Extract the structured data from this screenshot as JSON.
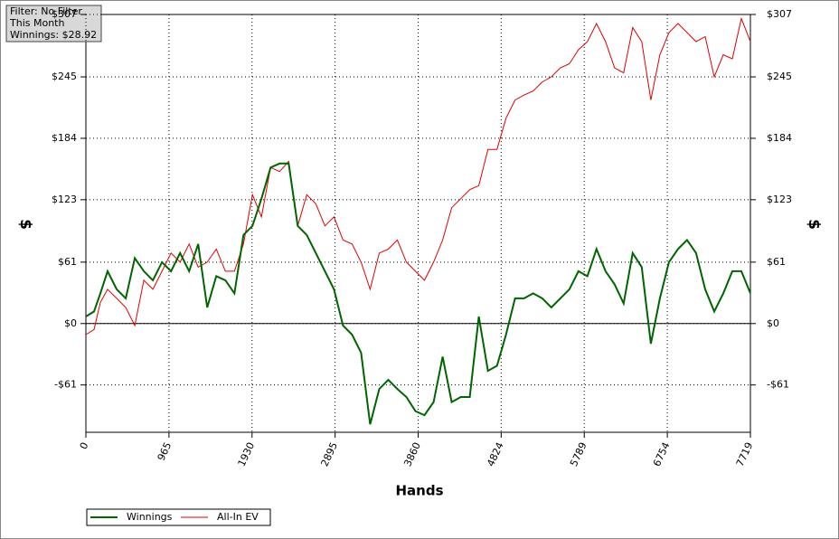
{
  "chart_data": {
    "type": "line",
    "x_label": "Hands",
    "y_label": "$",
    "y2_label": "$",
    "info": [
      "Filter: No Filter",
      "This Month",
      "Winnings: $28.92"
    ],
    "x": [
      0,
      95,
      168,
      252,
      358,
      463,
      568,
      673,
      778,
      884,
      989,
      1094,
      1199,
      1304,
      1409,
      1514,
      1620,
      1725,
      1830,
      1935,
      2040,
      2146,
      2251,
      2356,
      2461,
      2566,
      2671,
      2777,
      2882,
      2987,
      3092,
      3197,
      3302,
      3408,
      3513,
      3618,
      3723,
      3828,
      3933,
      4039,
      4144,
      4249,
      4354,
      4459,
      4564,
      4670,
      4775,
      4880,
      4985,
      5090,
      5195,
      5301,
      5406,
      5511,
      5616,
      5721,
      5826,
      5932,
      6037,
      6142,
      6247,
      6352,
      6457,
      6563,
      6668,
      6773,
      6878,
      6983,
      7088,
      7194,
      7299,
      7404,
      7509,
      7614,
      7719
    ],
    "series": [
      {
        "name": "Winnings",
        "color": "#006400",
        "values": [
          7,
          12,
          30,
          52,
          34,
          25,
          65,
          52,
          43,
          61,
          52,
          70,
          52,
          79,
          16,
          47,
          43,
          30,
          88,
          97,
          124,
          155,
          159,
          159,
          97,
          88,
          70,
          52,
          34,
          -2,
          -11,
          -29,
          -100,
          -65,
          -56,
          -65,
          -73,
          -87,
          -91,
          -78,
          -33,
          -78,
          -73,
          -73,
          7,
          -47,
          -42,
          -11,
          25,
          25,
          30,
          25,
          16,
          25,
          34,
          52,
          47,
          74,
          52,
          39,
          20,
          70,
          56,
          -20,
          25,
          61,
          74,
          83,
          70,
          34,
          12,
          30,
          52,
          52,
          30
        ]
      },
      {
        "name": "All-In EV",
        "color": "#e00000",
        "values": [
          -11,
          -6,
          21,
          34,
          25,
          16,
          -2,
          43,
          34,
          52,
          70,
          61,
          79,
          56,
          61,
          74,
          52,
          52,
          79,
          128,
          106,
          155,
          151,
          161,
          97,
          128,
          119,
          97,
          106,
          83,
          79,
          61,
          34,
          70,
          74,
          83,
          61,
          52,
          43,
          61,
          83,
          115,
          124,
          133,
          137,
          173,
          173,
          204,
          222,
          227,
          231,
          240,
          245,
          254,
          258,
          272,
          280,
          298,
          280,
          254,
          249,
          294,
          280,
          222,
          267,
          289,
          298,
          289,
          280,
          285,
          245,
          267,
          263,
          303,
          280
        ]
      }
    ],
    "xlim": [
      0,
      7719
    ],
    "xticks": [
      0,
      965,
      1930,
      2895,
      3860,
      4824,
      5789,
      6754,
      7719
    ],
    "ylim": [
      -108,
      307
    ],
    "yticks": [
      {
        "value": -61,
        "label": "-$61"
      },
      {
        "value": 0,
        "label": "$0"
      },
      {
        "value": 61,
        "label": "$61"
      },
      {
        "value": 123,
        "label": "$123"
      },
      {
        "value": 184,
        "label": "$184"
      },
      {
        "value": 245,
        "label": "$245"
      },
      {
        "value": 307,
        "label": "$307"
      }
    ],
    "y2lim": [
      -108,
      307
    ],
    "y2ticks": [
      {
        "value": -61,
        "label": "-$61"
      },
      {
        "value": 0,
        "label": "$0"
      },
      {
        "value": 61,
        "label": "$61"
      },
      {
        "value": 123,
        "label": "$123"
      },
      {
        "value": 184,
        "label": "$184"
      },
      {
        "value": 245,
        "label": "$245"
      },
      {
        "value": 307,
        "label": "$307"
      }
    ],
    "grid": true,
    "legend": "bottom-left"
  }
}
